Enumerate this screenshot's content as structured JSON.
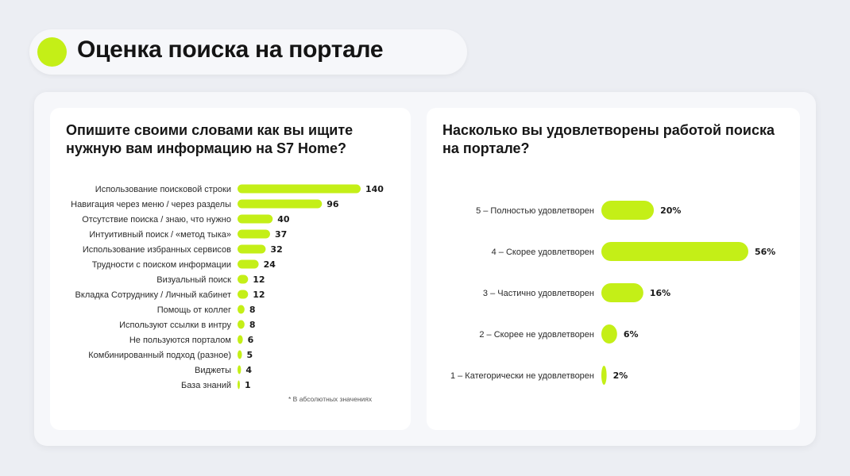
{
  "page": {
    "title": "Оценка поиска на портале"
  },
  "colors": {
    "accent": "#c4ef17",
    "background": "#eceef3",
    "card": "#ffffff"
  },
  "left_panel": {
    "title": "Опишите своими словами как вы ищите нужную вам информацию на S7 Home?",
    "footnote": "* В абсолютных значениях"
  },
  "right_panel": {
    "title": "Насколько вы удовлетворены работой поиска на портале?"
  },
  "chart_data": [
    {
      "type": "bar",
      "orientation": "horizontal",
      "title": "Опишите своими словами как вы ищите нужную вам информацию на S7 Home?",
      "categories": [
        "Использование поисковой строки",
        "Навигация через меню / через разделы",
        "Отсутствие поиска / знаю, что нужно",
        "Интуитивный поиск / «метод тыка»",
        "Использование избранных сервисов",
        "Трудности с поиском информации",
        "Визуальный поиск",
        "Вкладка Сотруднику / Личный кабинет",
        "Помощь от коллег",
        "Используют ссылки в интру",
        "Не пользуются порталом",
        "Комбинированный подход (разное)",
        "Виджеты",
        "База знаний"
      ],
      "values": [
        140,
        96,
        40,
        37,
        32,
        24,
        12,
        12,
        8,
        8,
        6,
        5,
        4,
        1
      ],
      "value_labels": [
        "140",
        "96",
        "40",
        "37",
        "32",
        "24",
        "12",
        "12",
        "8",
        "8",
        "6",
        "5",
        "4",
        "1"
      ],
      "xlim": [
        0,
        140
      ],
      "grid": false,
      "note": "* В абсолютных значениях"
    },
    {
      "type": "bar",
      "orientation": "horizontal",
      "title": "Насколько вы удовлетворены работой поиска на портале?",
      "categories": [
        "5 – Полностью удовлетворен",
        "4 – Скорее удовлетворен",
        "3 – Частично удовлетворен",
        "2 – Скорее не удовлетворен",
        "1 – Категорически не  удовлетворен"
      ],
      "values": [
        20,
        56,
        16,
        6,
        2
      ],
      "value_labels": [
        "20%",
        "56%",
        "16%",
        "6%",
        "2%"
      ],
      "xlim": [
        0,
        56
      ],
      "grid": false
    }
  ]
}
